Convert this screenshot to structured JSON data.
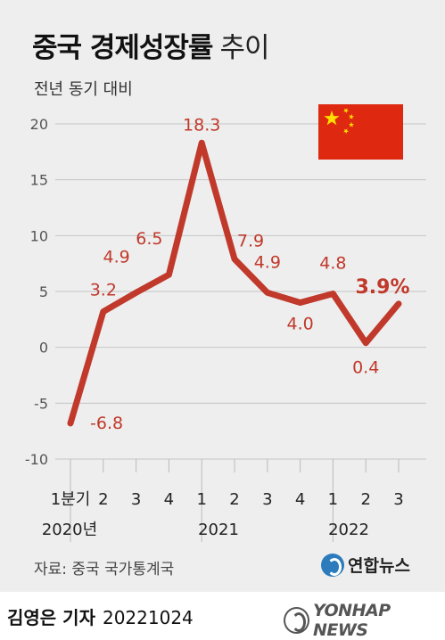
{
  "header": {
    "title": "중국 경제성장률",
    "title_suffix": "추이",
    "subtitle": "전년 동기 대비"
  },
  "chart_data": {
    "type": "line",
    "ylim": [
      -10,
      20
    ],
    "yticks": [
      "20",
      "15",
      "10",
      "5",
      "0",
      "-5",
      "-10"
    ],
    "ytick_values": [
      20,
      15,
      10,
      5,
      0,
      -5,
      -10
    ],
    "grid": true,
    "x": [
      "1분기",
      "2",
      "3",
      "4",
      "1",
      "2",
      "3",
      "4",
      "1",
      "2",
      "3"
    ],
    "year_labels": [
      "2020년",
      "2021",
      "2022"
    ],
    "series": [
      {
        "values": [
          -6.8,
          3.2,
          4.9,
          6.5,
          18.3,
          7.9,
          4.9,
          4.0,
          4.8,
          0.4,
          3.9
        ],
        "labels": [
          "-6.8",
          "3.2",
          "4.9",
          "6.5",
          "18.3",
          "7.9",
          "4.9",
          "4.0",
          "4.8",
          "0.4",
          "3.9%"
        ],
        "color": "#c0392b"
      }
    ]
  },
  "flag": {
    "icon": "china-flag-icon",
    "color": "#de2910",
    "star_color": "#ffde00"
  },
  "source": "자료: 중국 국가통계국",
  "brand": {
    "name": "연합뉴스",
    "icon": "yonhap-logo-icon",
    "color": "#2b7bbd"
  },
  "footer": {
    "author": "김영은 기자",
    "date": "20221024",
    "agency": "YONHAP NEWS"
  }
}
